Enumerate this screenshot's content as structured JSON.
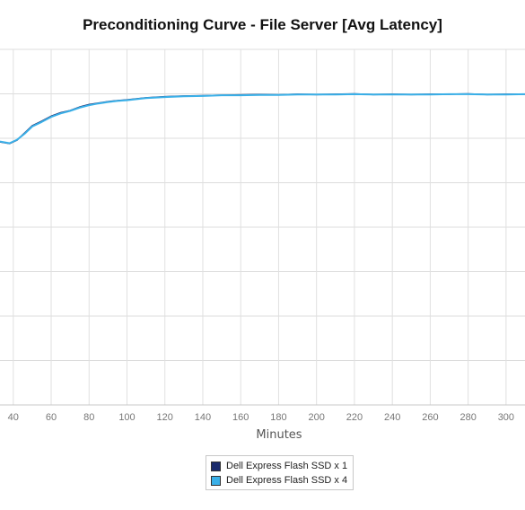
{
  "chart_data": {
    "type": "line",
    "title": "Preconditioning Curve - File Server [Avg Latency]",
    "xlabel": "Minutes",
    "ylabel": "",
    "xlim": [
      33,
      310
    ],
    "x_ticks": [
      40,
      60,
      80,
      100,
      120,
      140,
      160,
      180,
      200,
      220,
      240,
      260,
      280,
      300
    ],
    "ylim": [
      0,
      1
    ],
    "grid": true,
    "legend_position": "bottom-center",
    "series": [
      {
        "name": "Dell Express Flash SSD x 1",
        "color": "#1a2a6c",
        "x": [
          33,
          38,
          42,
          46,
          50,
          55,
          60,
          65,
          70,
          75,
          80,
          85,
          90,
          95,
          100,
          110,
          120,
          130,
          140,
          150,
          160,
          170,
          180,
          190,
          200,
          210,
          220,
          230,
          240,
          250,
          260,
          270,
          280,
          290,
          300,
          310
        ],
        "y": [
          0.74,
          0.735,
          0.745,
          0.765,
          0.785,
          0.798,
          0.812,
          0.822,
          0.828,
          0.838,
          0.845,
          0.849,
          0.853,
          0.856,
          0.858,
          0.864,
          0.867,
          0.869,
          0.87,
          0.871,
          0.872,
          0.873,
          0.872,
          0.874,
          0.873,
          0.874,
          0.875,
          0.873,
          0.874,
          0.873,
          0.874,
          0.874,
          0.875,
          0.873,
          0.874,
          0.874
        ]
      },
      {
        "name": "Dell Express Flash SSD x 4",
        "color": "#3ab0e8",
        "x": [
          33,
          38,
          42,
          46,
          50,
          55,
          60,
          65,
          70,
          75,
          80,
          85,
          90,
          95,
          100,
          110,
          120,
          130,
          140,
          150,
          160,
          170,
          180,
          190,
          200,
          210,
          220,
          230,
          240,
          250,
          260,
          270,
          280,
          290,
          300,
          310
        ],
        "y": [
          0.741,
          0.736,
          0.746,
          0.763,
          0.783,
          0.796,
          0.81,
          0.82,
          0.827,
          0.836,
          0.843,
          0.848,
          0.852,
          0.855,
          0.857,
          0.863,
          0.866,
          0.868,
          0.869,
          0.871,
          0.871,
          0.872,
          0.872,
          0.873,
          0.873,
          0.873,
          0.874,
          0.873,
          0.873,
          0.873,
          0.873,
          0.874,
          0.874,
          0.873,
          0.873,
          0.874
        ]
      }
    ]
  }
}
